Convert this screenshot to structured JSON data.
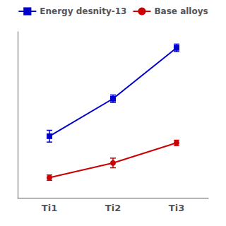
{
  "chart_data": {
    "type": "line",
    "categories": [
      "Ti1",
      "Ti2",
      "Ti3"
    ],
    "series": [
      {
        "name": "Energy desnity-13",
        "color": "#0000cc",
        "marker": "square",
        "values": [
          310,
          450,
          640
        ],
        "errors": [
          22,
          14,
          14
        ]
      },
      {
        "name": "Base alloys",
        "color": "#cc0000",
        "marker": "circle",
        "values": [
          155,
          210,
          285
        ],
        "errors": [
          10,
          18,
          10
        ]
      }
    ],
    "ylim": [
      80,
      700
    ],
    "yticks": [],
    "tick_labels": "x",
    "grid": false,
    "legend": "top"
  }
}
